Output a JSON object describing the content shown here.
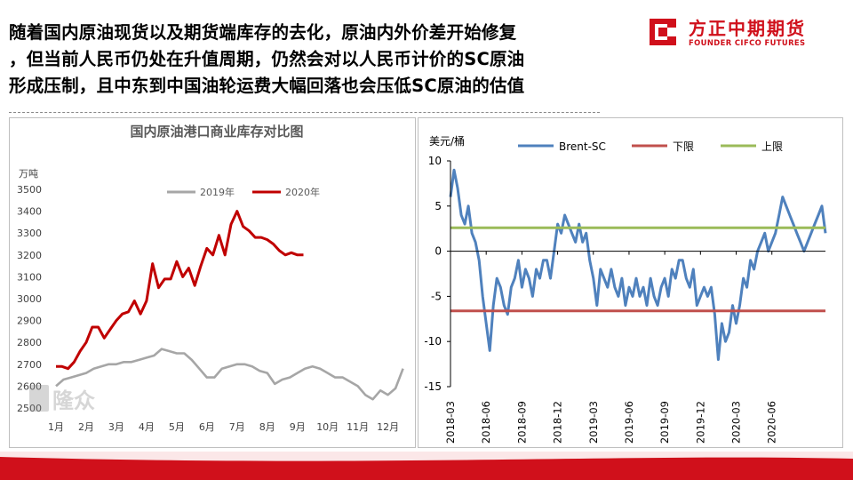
{
  "headline": {
    "line1": "随着国内原油现货以及期货端库存的去化，原油内外价差开始修复",
    "line2": "，但当前人民币仍处在升值周期，仍然会对以人民币计价的SC原油",
    "line3": "形成压制，且中东到中国油轮运费大幅回落也会压低SC原油的估值"
  },
  "logo": {
    "cn": "方正中期期货",
    "en": "FOUNDER CIFCO FUTURES",
    "brand_color": "#d0101b"
  },
  "chart_data": [
    {
      "type": "line",
      "title": "国内原油港口商业库存对比图",
      "ylabel": "万吨",
      "ylim": [
        2500,
        3500
      ],
      "yticks": [
        2500,
        2600,
        2700,
        2800,
        2900,
        3000,
        3100,
        3200,
        3300,
        3400,
        3500
      ],
      "xticks": [
        "1月",
        "2月",
        "3月",
        "4月",
        "5月",
        "6月",
        "7月",
        "8月",
        "9月",
        "10月",
        "11月",
        "12月"
      ],
      "legend": "top",
      "grid": false,
      "watermark": "隆众",
      "series": [
        {
          "name": "2019年",
          "color": "#a6a6a6",
          "x": [
            1.0,
            1.25,
            1.5,
            1.75,
            2.0,
            2.25,
            2.5,
            2.75,
            3.0,
            3.25,
            3.5,
            3.75,
            4.0,
            4.25,
            4.5,
            4.75,
            5.0,
            5.25,
            5.5,
            5.75,
            6.0,
            6.25,
            6.5,
            6.75,
            7.0,
            7.25,
            7.5,
            7.75,
            8.0,
            8.25,
            8.5,
            8.75,
            9.0,
            9.25,
            9.5,
            9.75,
            10.0,
            10.25,
            10.5,
            10.75,
            11.0,
            11.25,
            11.5,
            11.75,
            12.0,
            12.25,
            12.5
          ],
          "values": [
            2600,
            2630,
            2640,
            2650,
            2660,
            2680,
            2690,
            2700,
            2700,
            2710,
            2710,
            2720,
            2730,
            2740,
            2770,
            2760,
            2750,
            2750,
            2720,
            2680,
            2640,
            2640,
            2680,
            2690,
            2700,
            2700,
            2690,
            2670,
            2660,
            2610,
            2630,
            2640,
            2660,
            2680,
            2690,
            2680,
            2660,
            2640,
            2640,
            2620,
            2600,
            2560,
            2540,
            2580,
            2560,
            2590,
            2680
          ]
        },
        {
          "name": "2020年",
          "color": "#c00000",
          "x": [
            1.0,
            1.2,
            1.4,
            1.6,
            1.8,
            2.0,
            2.2,
            2.4,
            2.6,
            2.8,
            3.0,
            3.2,
            3.4,
            3.6,
            3.8,
            4.0,
            4.2,
            4.4,
            4.6,
            4.8,
            5.0,
            5.2,
            5.4,
            5.6,
            5.8,
            6.0,
            6.2,
            6.4,
            6.6,
            6.8,
            7.0,
            7.2,
            7.4,
            7.6,
            7.8,
            8.0,
            8.2,
            8.4,
            8.6,
            8.8,
            9.0,
            9.2
          ],
          "values": [
            2690,
            2690,
            2680,
            2710,
            2760,
            2800,
            2870,
            2870,
            2820,
            2860,
            2900,
            2930,
            2940,
            2990,
            2930,
            2990,
            3160,
            3050,
            3090,
            3090,
            3170,
            3100,
            3140,
            3060,
            3150,
            3230,
            3200,
            3290,
            3200,
            3340,
            3400,
            3330,
            3310,
            3280,
            3280,
            3270,
            3250,
            3220,
            3200,
            3210,
            3200,
            3200
          ]
        }
      ]
    },
    {
      "type": "line",
      "ylabel": "美元/桶",
      "ylim": [
        -15,
        10
      ],
      "yticks": [
        10,
        5,
        0,
        -5,
        -10,
        -15
      ],
      "xticks": [
        "2018-03",
        "2018-06",
        "2018-09",
        "2018-12",
        "2019-03",
        "2019-06",
        "2019-09",
        "2019-12",
        "2020-03",
        "2020-06"
      ],
      "legend": "top",
      "grid": false,
      "series": [
        {
          "name": "Brent-SC",
          "color": "#4f81bd",
          "x": [
            0.0,
            0.1,
            0.2,
            0.3,
            0.4,
            0.5,
            0.6,
            0.7,
            0.8,
            0.9,
            1.0,
            1.1,
            1.2,
            1.3,
            1.4,
            1.5,
            1.6,
            1.7,
            1.8,
            1.9,
            2.0,
            2.1,
            2.2,
            2.3,
            2.4,
            2.5,
            2.6,
            2.7,
            2.8,
            2.9,
            3.0,
            3.1,
            3.2,
            3.3,
            3.4,
            3.5,
            3.6,
            3.7,
            3.8,
            3.9,
            4.0,
            4.1,
            4.2,
            4.3,
            4.4,
            4.5,
            4.6,
            4.7,
            4.8,
            4.9,
            5.0,
            5.1,
            5.2,
            5.3,
            5.4,
            5.5,
            5.6,
            5.7,
            5.8,
            5.9,
            6.0,
            6.1,
            6.2,
            6.3,
            6.4,
            6.5,
            6.6,
            6.7,
            6.8,
            6.9,
            7.0,
            7.1,
            7.2,
            7.3,
            7.4,
            7.5,
            7.6,
            7.7,
            7.8,
            7.9,
            8.0,
            8.1,
            8.2,
            8.3,
            8.4,
            8.5,
            8.6,
            8.7,
            8.8,
            8.9,
            9.0,
            9.1,
            9.2,
            9.3,
            9.4,
            9.5,
            9.6,
            9.7,
            9.8,
            9.9,
            10.0,
            10.1,
            10.2,
            10.3,
            10.4,
            10.5
          ],
          "values": [
            6,
            9,
            7,
            4,
            3,
            5,
            2,
            1,
            -1,
            -5,
            -8,
            -11,
            -6,
            -3,
            -4,
            -6,
            -7,
            -4,
            -3,
            -1,
            -4,
            -2,
            -3,
            -5,
            -2,
            -3,
            -1,
            -1,
            -3,
            0,
            3,
            2,
            4,
            3,
            2,
            1,
            3,
            1,
            2,
            -1,
            -3,
            -6,
            -2,
            -3,
            -4,
            -2,
            -4,
            -5,
            -3,
            -6,
            -4,
            -5,
            -3,
            -5,
            -4,
            -6,
            -3,
            -5,
            -6,
            -4,
            -3,
            -5,
            -2,
            -3,
            -1,
            -1,
            -3,
            -4,
            -2,
            -6,
            -5,
            -4,
            -5,
            -4,
            -7,
            -12,
            -8,
            -10,
            -9,
            -6,
            -8,
            -6,
            -3,
            -4,
            -1,
            -2,
            0,
            1,
            2,
            0,
            1,
            2,
            4,
            6,
            5,
            4,
            3,
            2,
            1,
            0,
            1,
            2,
            3,
            4,
            5,
            2
          ]
        },
        {
          "name": "下限",
          "color": "#c0504d",
          "x": [
            0,
            10.5
          ],
          "values": [
            -6.6,
            -6.6
          ]
        },
        {
          "name": "上限",
          "color": "#9bbb59",
          "x": [
            0,
            10.5
          ],
          "values": [
            2.6,
            2.6
          ]
        }
      ]
    }
  ]
}
